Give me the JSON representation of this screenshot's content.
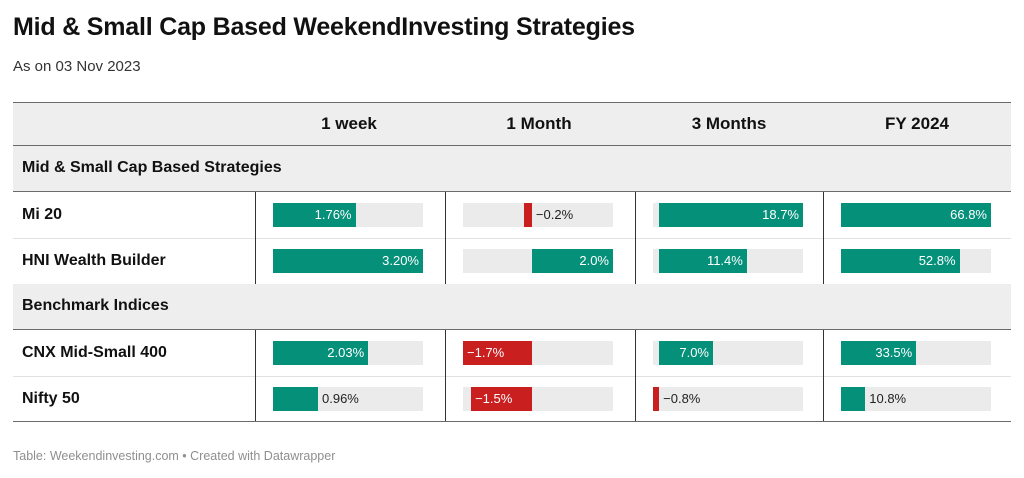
{
  "title": "Mid & Small Cap Based WeekendInvesting Strategies",
  "subtitle": "As on 03 Nov 2023",
  "notes": "Table: Weekendinvesting.com • Created with Datawrapper",
  "colors": {
    "positive": "#05907a",
    "negative": "#c91f1f",
    "track": "#ebebeb"
  },
  "chart_data": {
    "type": "table",
    "columns": [
      "1 week",
      "1 Month",
      "3 Months",
      "FY 2024"
    ],
    "unit": "%",
    "groups": [
      {
        "name": "Mid & Small Cap Based Strategies",
        "rows": [
          {
            "name": "Mi 20",
            "values": [
              1.76,
              -0.2,
              18.7,
              66.8
            ],
            "labels": [
              "1.76%",
              "−0.2%",
              "18.7%",
              "66.8%"
            ]
          },
          {
            "name": "HNI Wealth Builder",
            "values": [
              3.2,
              2.0,
              11.4,
              52.8
            ],
            "labels": [
              "3.20%",
              "2.0%",
              "11.4%",
              "52.8%"
            ]
          }
        ]
      },
      {
        "name": "Benchmark Indices",
        "rows": [
          {
            "name": "CNX Mid-Small 400",
            "values": [
              2.03,
              -1.7,
              7.0,
              33.5
            ],
            "labels": [
              "2.03%",
              "−1.7%",
              "7.0%",
              "33.5%"
            ]
          },
          {
            "name": "Nifty 50",
            "values": [
              0.96,
              -1.5,
              -0.8,
              10.8
            ],
            "labels": [
              "0.96%",
              "−1.5%",
              "−0.8%",
              "10.8%"
            ]
          }
        ]
      }
    ],
    "column_ranges": [
      [
        0,
        3.2
      ],
      [
        -1.7,
        2.0
      ],
      [
        -0.8,
        18.7
      ],
      [
        0,
        66.8
      ]
    ]
  }
}
